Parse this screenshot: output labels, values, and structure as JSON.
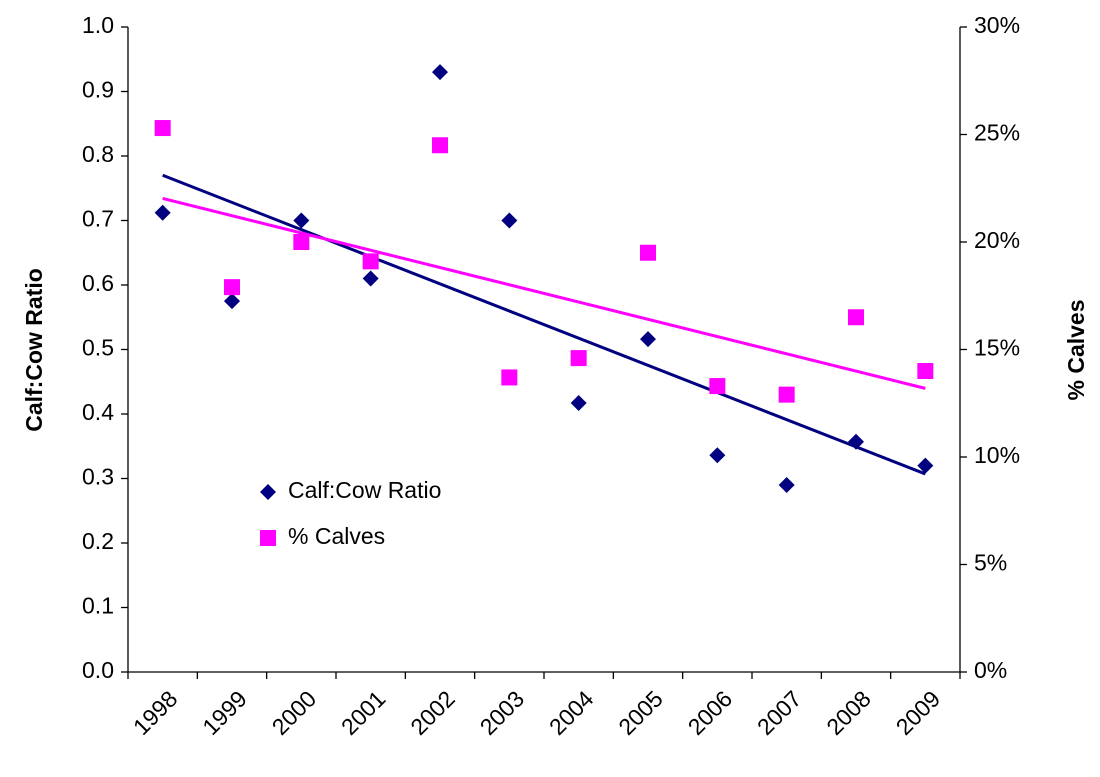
{
  "chart_data": {
    "type": "scatter",
    "categories": [
      "1998",
      "1999",
      "2000",
      "2001",
      "2002",
      "2003",
      "2004",
      "2005",
      "2006",
      "2007",
      "2008",
      "2009"
    ],
    "y_label": "Calf:Cow Ratio",
    "y2_label": "% Calves",
    "ylim": [
      0,
      1
    ],
    "yticks": [
      {
        "value": 0,
        "label": "0.0"
      },
      0.1,
      0.2,
      0.3,
      0.4,
      0.5,
      0.6,
      0.7,
      0.8,
      0.9,
      {
        "value": 1,
        "label": "1.0"
      }
    ],
    "y2lim": [
      0,
      30
    ],
    "y2ticks": [
      {
        "value": 0,
        "label": "0%"
      },
      {
        "value": 5,
        "label": "5%"
      },
      {
        "value": 10,
        "label": "10%"
      },
      {
        "value": 15,
        "label": "15%"
      },
      {
        "value": 20,
        "label": "20%"
      },
      {
        "value": 25,
        "label": "25%"
      },
      {
        "value": 30,
        "label": "30%"
      }
    ],
    "grid": false,
    "legend": "center left",
    "series": [
      {
        "name": "Calf:Cow Ratio",
        "color": "#000080",
        "marker": "diamond",
        "trendline": true,
        "values": [
          0.712,
          0.575,
          0.7,
          0.61,
          0.93,
          0.7,
          0.417,
          0.516,
          0.336,
          0.29,
          0.357,
          0.32
        ]
      },
      {
        "name": "% Calves",
        "color": "#ff00ff",
        "marker": "square",
        "trendline": true,
        "axis": "y2",
        "values": [
          25.3,
          17.9,
          20.0,
          19.1,
          24.5,
          13.7,
          14.6,
          19.5,
          13.3,
          12.9,
          16.5,
          14.0
        ]
      }
    ]
  }
}
